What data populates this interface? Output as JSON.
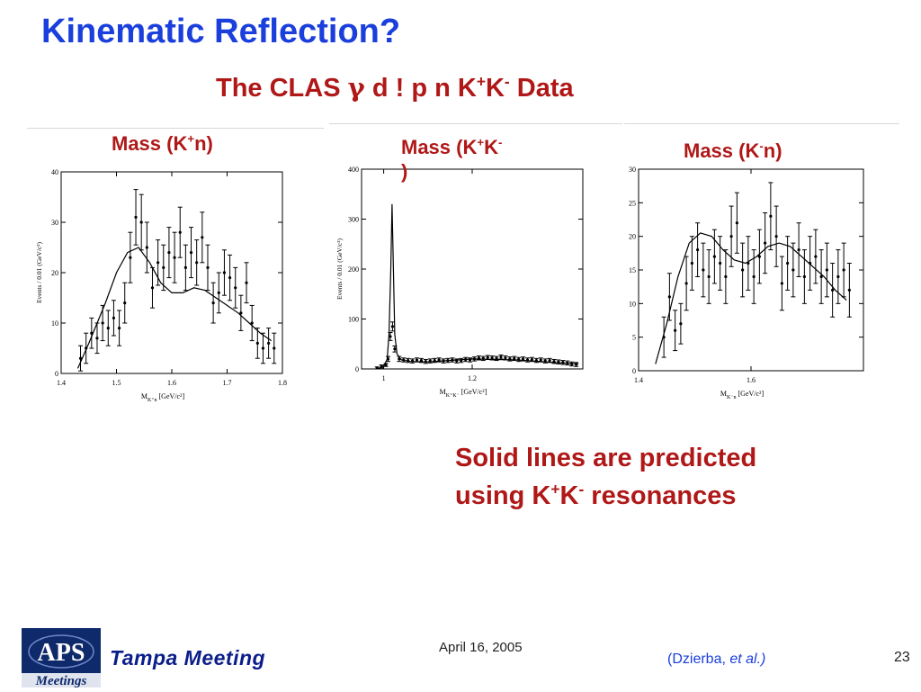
{
  "colors": {
    "title_blue": "#1a3fdc",
    "accent_red": "#b01818",
    "logo_navy": "#0f2a6b"
  },
  "slide": {
    "title": "Kinematic Reflection?",
    "subtitle": {
      "pre": "The CLAS ",
      "gamma": "γ",
      "mid": " d ! p n K",
      "sup1": "+",
      "k2": "K",
      "sup2": "-",
      "post": " Data"
    }
  },
  "captions": [
    {
      "pre": "Mass (K",
      "sup": "+",
      "post": "n)"
    },
    {
      "pre": "Mass (K",
      "sup": "+",
      "mid": "K",
      "sup2": "-",
      "post": ")"
    },
    {
      "pre": "Mass (K",
      "sup": "-",
      "post": "n)"
    }
  ],
  "note": {
    "line1": "Solid lines are predicted",
    "line2_pre": "using  K",
    "sup1": "+",
    "k2": "K",
    "sup2": "-",
    "line2_post": " resonances"
  },
  "footer": {
    "date": "April 16, 2005",
    "meeting": "Tampa Meeting",
    "ref_pre": "(Dzierba, ",
    "ref_italic": "et al.)",
    "page": "23",
    "logo_text_top": "APS",
    "logo_text_bottom": "Meetings"
  },
  "chart_data": [
    {
      "type": "scatter",
      "ylabel": "Events / 0.01 (GeV/c²)",
      "xlabel_main": "M",
      "xlabel_sub": "K⁺n",
      "xlabel_unit": "[GeV/c²]",
      "xlim": [
        1.4,
        1.8
      ],
      "ylim": [
        0,
        40
      ],
      "xticks": [
        1.4,
        1.5,
        1.6,
        1.7,
        1.8
      ],
      "xtick_labels": [
        "1.4",
        "1.5",
        "1.6",
        "1.7",
        "1.8"
      ],
      "yticks": [
        0,
        10,
        20,
        30,
        40
      ],
      "ytick_labels": [
        "0",
        "10",
        "20",
        "30",
        "40"
      ],
      "points": [
        {
          "x": 1.435,
          "y": 3,
          "err": 2.5
        },
        {
          "x": 1.445,
          "y": 5,
          "err": 3
        },
        {
          "x": 1.455,
          "y": 8,
          "err": 3
        },
        {
          "x": 1.465,
          "y": 7,
          "err": 3
        },
        {
          "x": 1.475,
          "y": 10,
          "err": 3.5
        },
        {
          "x": 1.485,
          "y": 9,
          "err": 3.5
        },
        {
          "x": 1.495,
          "y": 11,
          "err": 3.5
        },
        {
          "x": 1.505,
          "y": 9,
          "err": 3.5
        },
        {
          "x": 1.515,
          "y": 14,
          "err": 4
        },
        {
          "x": 1.525,
          "y": 23,
          "err": 5
        },
        {
          "x": 1.535,
          "y": 31,
          "err": 5.5
        },
        {
          "x": 1.545,
          "y": 30,
          "err": 5.5
        },
        {
          "x": 1.555,
          "y": 25,
          "err": 5
        },
        {
          "x": 1.565,
          "y": 17,
          "err": 4
        },
        {
          "x": 1.575,
          "y": 22,
          "err": 4.5
        },
        {
          "x": 1.585,
          "y": 21,
          "err": 4.5
        },
        {
          "x": 1.595,
          "y": 24,
          "err": 5
        },
        {
          "x": 1.605,
          "y": 23,
          "err": 5
        },
        {
          "x": 1.615,
          "y": 28,
          "err": 5
        },
        {
          "x": 1.625,
          "y": 21,
          "err": 4.5
        },
        {
          "x": 1.635,
          "y": 24,
          "err": 5
        },
        {
          "x": 1.645,
          "y": 22,
          "err": 4.5
        },
        {
          "x": 1.655,
          "y": 27,
          "err": 5
        },
        {
          "x": 1.665,
          "y": 21,
          "err": 4.5
        },
        {
          "x": 1.675,
          "y": 14,
          "err": 4
        },
        {
          "x": 1.685,
          "y": 16,
          "err": 4
        },
        {
          "x": 1.695,
          "y": 20,
          "err": 4.5
        },
        {
          "x": 1.705,
          "y": 19,
          "err": 4.5
        },
        {
          "x": 1.715,
          "y": 17,
          "err": 4
        },
        {
          "x": 1.725,
          "y": 12,
          "err": 3.5
        },
        {
          "x": 1.735,
          "y": 18,
          "err": 4
        },
        {
          "x": 1.745,
          "y": 10,
          "err": 3.5
        },
        {
          "x": 1.755,
          "y": 6,
          "err": 3
        },
        {
          "x": 1.765,
          "y": 5,
          "err": 3
        },
        {
          "x": 1.775,
          "y": 6,
          "err": 3
        },
        {
          "x": 1.785,
          "y": 5,
          "err": 3
        }
      ],
      "curve": {
        "x": [
          1.43,
          1.45,
          1.48,
          1.5,
          1.52,
          1.54,
          1.56,
          1.58,
          1.6,
          1.62,
          1.64,
          1.66,
          1.68,
          1.7,
          1.72,
          1.74,
          1.76,
          1.78
        ],
        "y": [
          1,
          6,
          14,
          20,
          24,
          25,
          22,
          18,
          16,
          16,
          17,
          16.5,
          15,
          13.5,
          12,
          10,
          8,
          6.5
        ]
      }
    },
    {
      "type": "scatter",
      "ylabel": "Events / 0.01 (GeV/c²)",
      "xlabel_main": "M",
      "xlabel_sub": "K⁺K⁻",
      "xlabel_unit": "[GeV/c²]",
      "xlim": [
        0.95,
        1.45
      ],
      "ylim": [
        0,
        400
      ],
      "xticks": [
        1.0,
        1.2
      ],
      "xtick_labels": [
        "1",
        "1.2"
      ],
      "yticks": [
        0,
        100,
        200,
        300,
        400
      ],
      "ytick_labels": [
        "0",
        "100",
        "200",
        "300",
        "400"
      ],
      "points": [
        {
          "x": 0.985,
          "y": 2,
          "err": 2
        },
        {
          "x": 0.995,
          "y": 5,
          "err": 3
        },
        {
          "x": 1.005,
          "y": 8,
          "err": 3
        },
        {
          "x": 1.01,
          "y": 20,
          "err": 5
        },
        {
          "x": 1.015,
          "y": 65,
          "err": 8
        },
        {
          "x": 1.02,
          "y": 85,
          "err": 9
        },
        {
          "x": 1.025,
          "y": 40,
          "err": 6
        },
        {
          "x": 1.035,
          "y": 20,
          "err": 5
        },
        {
          "x": 1.045,
          "y": 18,
          "err": 4
        },
        {
          "x": 1.055,
          "y": 17,
          "err": 4
        },
        {
          "x": 1.065,
          "y": 16,
          "err": 4
        },
        {
          "x": 1.075,
          "y": 18,
          "err": 4
        },
        {
          "x": 1.085,
          "y": 17,
          "err": 4
        },
        {
          "x": 1.095,
          "y": 15,
          "err": 4
        },
        {
          "x": 1.105,
          "y": 16,
          "err": 4
        },
        {
          "x": 1.115,
          "y": 17,
          "err": 4
        },
        {
          "x": 1.125,
          "y": 18,
          "err": 4
        },
        {
          "x": 1.135,
          "y": 16,
          "err": 4
        },
        {
          "x": 1.145,
          "y": 17,
          "err": 4
        },
        {
          "x": 1.155,
          "y": 18,
          "err": 4
        },
        {
          "x": 1.165,
          "y": 16,
          "err": 4
        },
        {
          "x": 1.175,
          "y": 17,
          "err": 4
        },
        {
          "x": 1.185,
          "y": 19,
          "err": 4
        },
        {
          "x": 1.195,
          "y": 18,
          "err": 4
        },
        {
          "x": 1.205,
          "y": 20,
          "err": 4
        },
        {
          "x": 1.215,
          "y": 22,
          "err": 4
        },
        {
          "x": 1.225,
          "y": 21,
          "err": 4
        },
        {
          "x": 1.235,
          "y": 23,
          "err": 4
        },
        {
          "x": 1.245,
          "y": 22,
          "err": 4
        },
        {
          "x": 1.255,
          "y": 21,
          "err": 4
        },
        {
          "x": 1.265,
          "y": 24,
          "err": 4
        },
        {
          "x": 1.275,
          "y": 22,
          "err": 4
        },
        {
          "x": 1.285,
          "y": 20,
          "err": 4
        },
        {
          "x": 1.295,
          "y": 21,
          "err": 4
        },
        {
          "x": 1.305,
          "y": 19,
          "err": 4
        },
        {
          "x": 1.315,
          "y": 20,
          "err": 4
        },
        {
          "x": 1.325,
          "y": 18,
          "err": 4
        },
        {
          "x": 1.335,
          "y": 19,
          "err": 4
        },
        {
          "x": 1.345,
          "y": 17,
          "err": 4
        },
        {
          "x": 1.355,
          "y": 18,
          "err": 4
        },
        {
          "x": 1.365,
          "y": 16,
          "err": 4
        },
        {
          "x": 1.375,
          "y": 17,
          "err": 4
        },
        {
          "x": 1.385,
          "y": 15,
          "err": 4
        },
        {
          "x": 1.395,
          "y": 14,
          "err": 4
        },
        {
          "x": 1.405,
          "y": 13,
          "err": 4
        },
        {
          "x": 1.415,
          "y": 12,
          "err": 4
        },
        {
          "x": 1.425,
          "y": 10,
          "err": 4
        },
        {
          "x": 1.435,
          "y": 9,
          "err": 4
        }
      ],
      "curve": {
        "x": [
          0.985,
          1.0,
          1.008,
          1.012,
          1.016,
          1.019,
          1.022,
          1.025,
          1.03,
          1.04,
          1.06,
          1.1,
          1.2,
          1.3,
          1.4,
          1.44
        ],
        "y": [
          0,
          5,
          20,
          70,
          200,
          330,
          200,
          70,
          30,
          18,
          15,
          14,
          20,
          18,
          12,
          10
        ]
      }
    },
    {
      "type": "scatter",
      "ylabel": "Events / 0.01 (GeV/c²)",
      "xlabel_main": "M",
      "xlabel_sub": "K⁻n",
      "xlabel_unit": "[GeV/c²]",
      "xlim": [
        1.4,
        1.8
      ],
      "ylim": [
        0,
        30
      ],
      "xticks": [
        1.4,
        1.6
      ],
      "xtick_labels": [
        "1.4",
        "1.6"
      ],
      "yticks": [
        0,
        5,
        10,
        15,
        20,
        25,
        30
      ],
      "ytick_labels": [
        "0",
        "5",
        "10",
        "15",
        "20",
        "25",
        "30"
      ],
      "points": [
        {
          "x": 1.445,
          "y": 5,
          "err": 3
        },
        {
          "x": 1.455,
          "y": 11,
          "err": 3.5
        },
        {
          "x": 1.465,
          "y": 6,
          "err": 3
        },
        {
          "x": 1.475,
          "y": 7,
          "err": 3
        },
        {
          "x": 1.485,
          "y": 13,
          "err": 4
        },
        {
          "x": 1.495,
          "y": 16,
          "err": 4
        },
        {
          "x": 1.505,
          "y": 18,
          "err": 4
        },
        {
          "x": 1.515,
          "y": 15,
          "err": 4
        },
        {
          "x": 1.525,
          "y": 14,
          "err": 4
        },
        {
          "x": 1.535,
          "y": 17,
          "err": 4
        },
        {
          "x": 1.545,
          "y": 16,
          "err": 4
        },
        {
          "x": 1.555,
          "y": 14,
          "err": 4
        },
        {
          "x": 1.565,
          "y": 20,
          "err": 4.5
        },
        {
          "x": 1.575,
          "y": 22,
          "err": 4.5
        },
        {
          "x": 1.585,
          "y": 15,
          "err": 4
        },
        {
          "x": 1.595,
          "y": 16,
          "err": 4
        },
        {
          "x": 1.605,
          "y": 14,
          "err": 4
        },
        {
          "x": 1.615,
          "y": 17,
          "err": 4
        },
        {
          "x": 1.625,
          "y": 19,
          "err": 4.5
        },
        {
          "x": 1.635,
          "y": 23,
          "err": 5
        },
        {
          "x": 1.645,
          "y": 20,
          "err": 4.5
        },
        {
          "x": 1.655,
          "y": 13,
          "err": 4
        },
        {
          "x": 1.665,
          "y": 16,
          "err": 4
        },
        {
          "x": 1.675,
          "y": 15,
          "err": 4
        },
        {
          "x": 1.685,
          "y": 18,
          "err": 4
        },
        {
          "x": 1.695,
          "y": 14,
          "err": 4
        },
        {
          "x": 1.705,
          "y": 16,
          "err": 4
        },
        {
          "x": 1.715,
          "y": 17,
          "err": 4
        },
        {
          "x": 1.725,
          "y": 14,
          "err": 4
        },
        {
          "x": 1.735,
          "y": 15,
          "err": 4
        },
        {
          "x": 1.745,
          "y": 12,
          "err": 4
        },
        {
          "x": 1.755,
          "y": 14,
          "err": 4
        },
        {
          "x": 1.765,
          "y": 15,
          "err": 4
        },
        {
          "x": 1.775,
          "y": 12,
          "err": 4
        }
      ],
      "curve": {
        "x": [
          1.43,
          1.45,
          1.47,
          1.49,
          1.51,
          1.53,
          1.55,
          1.57,
          1.59,
          1.61,
          1.63,
          1.65,
          1.67,
          1.69,
          1.71,
          1.73,
          1.75,
          1.77
        ],
        "y": [
          1,
          7,
          14,
          19,
          20.5,
          20,
          18,
          16.5,
          16,
          17,
          18.5,
          19,
          18.5,
          17,
          15.5,
          14,
          12,
          10.5
        ]
      }
    }
  ]
}
